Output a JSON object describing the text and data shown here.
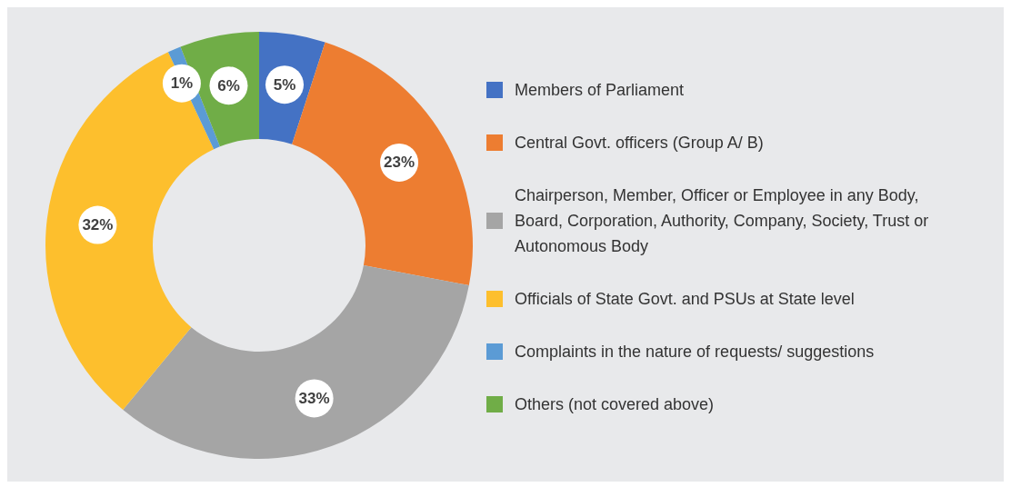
{
  "chart_data": {
    "type": "donut",
    "categories": [
      "Members of Parliament",
      "Central Govt. officers (Group A/ B)",
      "Chairperson, Member, Officer or Employee in any Body, Board, Corporation, Authority, Company, Society, Trust or Autonomous Body",
      "Officials of State Govt. and PSUs at State level",
      "Complaints in the nature of requests/ suggestions",
      "Others (not covered above)"
    ],
    "values": [
      5,
      23,
      33,
      32,
      1,
      6
    ],
    "colors": [
      "#4472c4",
      "#ed7d31",
      "#a5a5a5",
      "#fdbf2d",
      "#5b9bd5",
      "#70ad47"
    ],
    "value_labels": [
      "5%",
      "23%",
      "33%",
      "32%",
      "1%",
      "6%"
    ],
    "legend": "right"
  }
}
